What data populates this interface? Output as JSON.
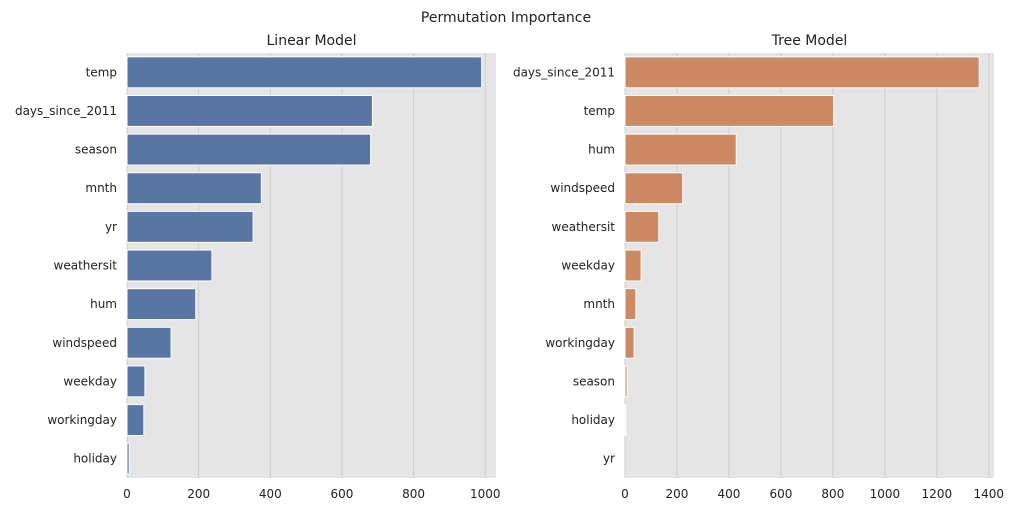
{
  "figure": {
    "title": "Permutation Importance"
  },
  "chart_data": [
    {
      "type": "bar",
      "orientation": "horizontal",
      "title": "Linear Model",
      "xlabel": "",
      "ylabel": "",
      "xlim": [
        0,
        1030
      ],
      "xticks": [
        0,
        200,
        400,
        600,
        800,
        1000
      ],
      "grid": true,
      "bar_color": "#5875a4",
      "categories": [
        "temp",
        "days_since_2011",
        "season",
        "mnth",
        "yr",
        "weathersit",
        "hum",
        "windspeed",
        "weekday",
        "workingday",
        "holiday"
      ],
      "values": [
        990,
        685,
        680,
        375,
        352,
        237,
        192,
        123,
        50,
        47,
        6
      ]
    },
    {
      "type": "bar",
      "orientation": "horizontal",
      "title": "Tree Model",
      "xlabel": "",
      "ylabel": "",
      "xlim": [
        0,
        1420
      ],
      "xticks": [
        0,
        200,
        400,
        600,
        800,
        1000,
        1200,
        1400
      ],
      "grid": true,
      "bar_color": "#cc8963",
      "categories": [
        "days_since_2011",
        "temp",
        "hum",
        "windspeed",
        "weathersit",
        "weekday",
        "mnth",
        "workingday",
        "season",
        "holiday",
        "yr"
      ],
      "values": [
        1363,
        803,
        428,
        222,
        130,
        62,
        42,
        35,
        8,
        3,
        0
      ]
    }
  ]
}
